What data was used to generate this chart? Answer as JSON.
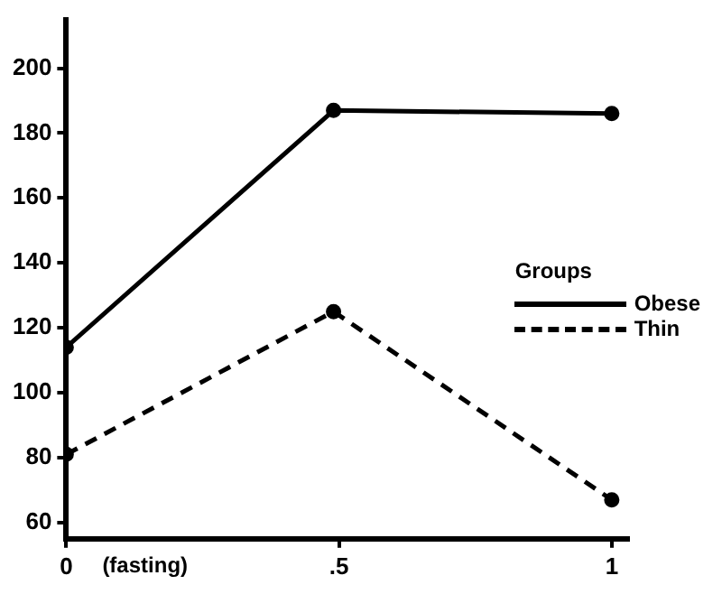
{
  "chart_data": {
    "type": "line",
    "legend_title": "Groups",
    "annotations": [
      "(fasting)"
    ],
    "x": [
      0,
      0.49,
      1
    ],
    "xlim": [
      0,
      1.03
    ],
    "xticks": [
      0,
      {
        "value": 0.5,
        "label": ".5"
      },
      1
    ],
    "ylim": [
      55,
      215
    ],
    "yticks": [
      60,
      80,
      100,
      120,
      140,
      160,
      180,
      200
    ],
    "series": [
      {
        "name": "Obese",
        "color": "#000000",
        "values": [
          114,
          187,
          186
        ],
        "line_style": "solid"
      },
      {
        "name": "Thin",
        "color": "#000000",
        "values": [
          81,
          125,
          67
        ],
        "line_style": "dashed"
      }
    ],
    "marker": "circle",
    "grid": false,
    "legend": "right"
  }
}
